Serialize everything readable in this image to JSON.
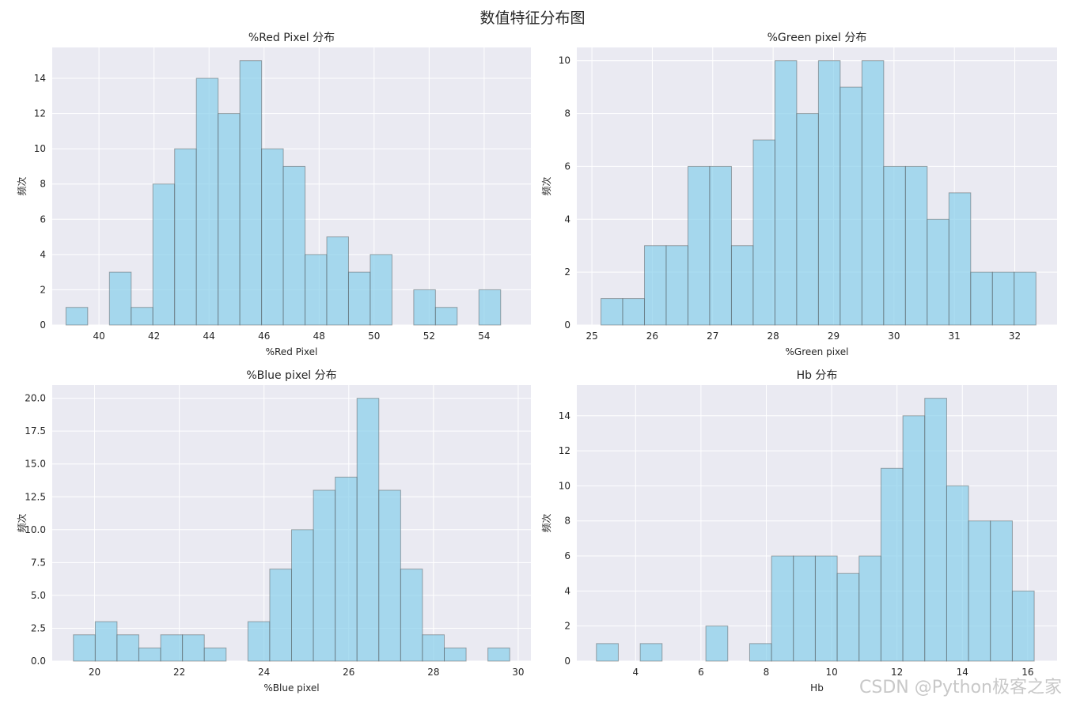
{
  "figure": {
    "suptitle": "数值特征分布图",
    "watermark": "CSDN @Python极客之家"
  },
  "colors": {
    "axes_bg": "#eaeaf2",
    "bar_fill": "#87ceeb",
    "bar_edge": "#4a4a4a",
    "grid": "#ffffff"
  },
  "chart_data": [
    {
      "type": "bar",
      "title": "%Red Pixel 分布",
      "xlabel": "%Red Pixel",
      "ylabel": "频次",
      "xlim": [
        38.3,
        55.7
      ],
      "ylim": [
        0,
        15.75
      ],
      "xticks": [
        40,
        42,
        44,
        46,
        48,
        50,
        52,
        54
      ],
      "yticks": [
        0,
        2,
        4,
        6,
        8,
        10,
        12,
        14
      ],
      "ytick_labels": [
        "0",
        "2",
        "4",
        "6",
        "8",
        "10",
        "12",
        "14"
      ],
      "grid": true,
      "bins": {
        "edges": [
          38.8,
          39.59,
          40.38,
          41.17,
          41.96,
          42.75,
          43.54,
          44.33,
          45.12,
          45.91,
          46.7,
          47.49,
          48.28,
          49.07,
          49.86,
          50.65,
          51.44,
          52.23,
          53.02,
          53.81,
          54.6
        ],
        "counts": [
          1,
          0,
          3,
          1,
          8,
          10,
          14,
          12,
          15,
          10,
          9,
          4,
          5,
          3,
          4,
          0,
          2,
          1,
          0,
          2
        ]
      }
    },
    {
      "type": "bar",
      "title": "%Green pixel 分布",
      "xlabel": "%Green pixel",
      "ylabel": "频次",
      "xlim": [
        24.75,
        32.7
      ],
      "ylim": [
        0,
        10.5
      ],
      "xticks": [
        25,
        26,
        27,
        28,
        29,
        30,
        31,
        32
      ],
      "yticks": [
        0,
        2,
        4,
        6,
        8,
        10
      ],
      "ytick_labels": [
        "0",
        "2",
        "4",
        "6",
        "8",
        "10"
      ],
      "grid": true,
      "bins": {
        "edges": [
          25.15,
          25.51,
          25.87,
          26.23,
          26.59,
          26.95,
          27.31,
          27.67,
          28.03,
          28.39,
          28.75,
          29.11,
          29.47,
          29.83,
          30.19,
          30.55,
          30.91,
          31.27,
          31.63,
          31.99,
          32.35
        ],
        "counts": [
          1,
          1,
          3,
          3,
          6,
          6,
          3,
          7,
          10,
          8,
          10,
          9,
          10,
          6,
          6,
          4,
          5,
          2,
          2,
          2
        ]
      }
    },
    {
      "type": "bar",
      "title": "%Blue pixel 分布",
      "xlabel": "%Blue pixel",
      "ylabel": "频次",
      "xlim": [
        19.0,
        30.3
      ],
      "ylim": [
        0,
        21.0
      ],
      "xticks": [
        20,
        22,
        24,
        26,
        28,
        30
      ],
      "yticks": [
        0,
        2.5,
        5,
        7.5,
        10,
        12.5,
        15,
        17.5,
        20
      ],
      "ytick_labels": [
        "0.0",
        "2.5",
        "5.0",
        "7.5",
        "10.0",
        "12.5",
        "15.0",
        "17.5",
        "20.0"
      ],
      "grid": true,
      "bins": {
        "edges": [
          19.5,
          20.015,
          20.53,
          21.045,
          21.56,
          22.075,
          22.59,
          23.105,
          23.62,
          24.135,
          24.65,
          25.165,
          25.68,
          26.195,
          26.71,
          27.225,
          27.74,
          28.255,
          28.77,
          29.285,
          29.8
        ],
        "counts": [
          2,
          3,
          2,
          1,
          2,
          2,
          1,
          0,
          3,
          7,
          10,
          13,
          14,
          20,
          13,
          7,
          2,
          1,
          0,
          1
        ]
      }
    },
    {
      "type": "bar",
      "title": "Hb 分布",
      "xlabel": "Hb",
      "ylabel": "频次",
      "xlim": [
        2.2,
        16.9
      ],
      "ylim": [
        0,
        15.75
      ],
      "xticks": [
        4,
        6,
        8,
        10,
        12,
        14,
        16
      ],
      "yticks": [
        0,
        2,
        4,
        6,
        8,
        10,
        12,
        14
      ],
      "ytick_labels": [
        "0",
        "2",
        "4",
        "6",
        "8",
        "10",
        "12",
        "14"
      ],
      "grid": true,
      "bins": {
        "edges": [
          2.8,
          3.47,
          4.14,
          4.81,
          5.48,
          6.15,
          6.82,
          7.49,
          8.16,
          8.83,
          9.5,
          10.17,
          10.84,
          11.51,
          12.18,
          12.85,
          13.52,
          14.19,
          14.86,
          15.53,
          16.2
        ],
        "counts": [
          1,
          0,
          1,
          0,
          0,
          2,
          0,
          1,
          6,
          6,
          6,
          5,
          6,
          11,
          14,
          15,
          10,
          8,
          8,
          4
        ]
      }
    }
  ]
}
